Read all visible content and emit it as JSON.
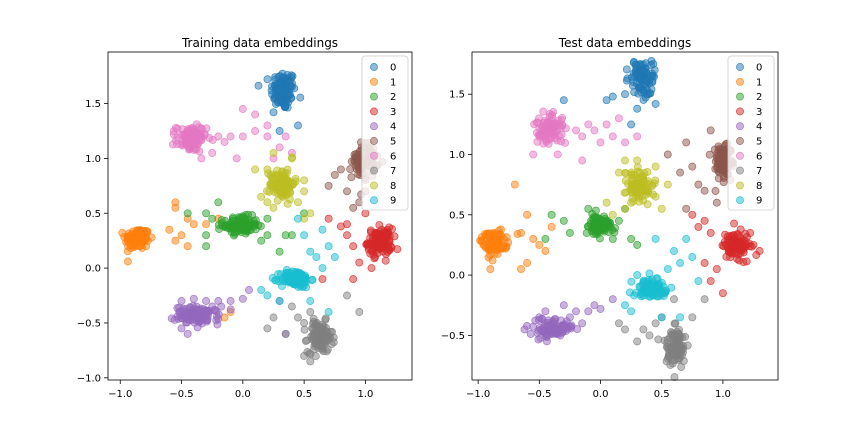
{
  "palette": [
    "#1f77b4",
    "#ff7f0e",
    "#2ca02c",
    "#d62728",
    "#9467bd",
    "#8c564b",
    "#e377c2",
    "#7f7f7f",
    "#bcbd22",
    "#17becf"
  ],
  "chart_data": [
    {
      "type": "scatter",
      "title": "Training data embeddings",
      "xlabel": "",
      "ylabel": "",
      "xlim": [
        -1.1,
        1.38
      ],
      "ylim": [
        -1.02,
        1.97
      ],
      "xticks": [
        -1.0,
        -0.5,
        0.0,
        0.5,
        1.0
      ],
      "xtick_labels": [
        "−1.0",
        "−0.5",
        "0.0",
        "0.5",
        "1.0"
      ],
      "yticks": [
        -1.0,
        -0.5,
        0.0,
        0.5,
        1.0,
        1.5
      ],
      "ytick_labels": [
        "−1.0",
        "−0.5",
        "0.0",
        "0.5",
        "1.0",
        "1.5"
      ],
      "grid": false,
      "legend": "upper right",
      "marker_alpha": 0.5,
      "series": [
        {
          "name": "0",
          "cx": 0.33,
          "cy": 1.62,
          "sx": 0.05,
          "sy": 0.09,
          "n": 110,
          "outliers": [
            [
              0.25,
              1.42
            ],
            [
              0.45,
              1.3
            ],
            [
              0.3,
              1.25
            ]
          ]
        },
        {
          "name": "1",
          "cx": -0.86,
          "cy": 0.27,
          "sx": 0.05,
          "sy": 0.05,
          "n": 110,
          "outliers": [
            [
              -0.6,
              0.35
            ],
            [
              -0.55,
              0.25
            ],
            [
              -0.5,
              0.3
            ],
            [
              -0.45,
              0.2
            ],
            [
              -0.4,
              0.4
            ],
            [
              -0.55,
              0.55
            ],
            [
              -0.45,
              0.45
            ],
            [
              -0.2,
              0.45
            ],
            [
              -0.55,
              0.6
            ],
            [
              -0.15,
              -0.45
            ],
            [
              -0.1,
              -0.4
            ],
            [
              -0.3,
              0.4
            ]
          ]
        },
        {
          "name": "2",
          "cx": -0.02,
          "cy": 0.39,
          "sx": 0.07,
          "sy": 0.04,
          "n": 110,
          "outliers": [
            [
              -0.3,
              0.5
            ],
            [
              -0.25,
              0.45
            ],
            [
              -0.3,
              0.3
            ],
            [
              -0.3,
              0.2
            ],
            [
              0.35,
              0.3
            ],
            [
              0.4,
              0.3
            ],
            [
              0.2,
              0.45
            ],
            [
              0.3,
              0.15
            ],
            [
              -0.45,
              0.5
            ],
            [
              0.5,
              0.5
            ],
            [
              -0.2,
              0.6
            ],
            [
              0.2,
              0.3
            ],
            [
              0.15,
              0.25
            ]
          ]
        },
        {
          "name": "3",
          "cx": 1.12,
          "cy": 0.24,
          "sx": 0.05,
          "sy": 0.06,
          "n": 110,
          "outliers": [
            [
              0.85,
              0.4
            ],
            [
              0.85,
              0.3
            ],
            [
              0.9,
              0.2
            ],
            [
              0.7,
              0.45
            ],
            [
              1.0,
              0.5
            ],
            [
              0.8,
              0.38
            ],
            [
              1.05,
              0.0
            ],
            [
              0.95,
              0.05
            ],
            [
              0.65,
              -0.1
            ],
            [
              0.9,
              -0.1
            ]
          ]
        },
        {
          "name": "4",
          "cx": -0.37,
          "cy": -0.43,
          "sx": 0.09,
          "sy": 0.04,
          "n": 110,
          "outliers": [
            [
              -0.2,
              -0.3
            ],
            [
              -0.1,
              -0.3
            ],
            [
              -0.25,
              -0.35
            ],
            [
              -0.3,
              -0.3
            ],
            [
              -0.4,
              -0.28
            ],
            [
              -0.5,
              -0.3
            ],
            [
              0.0,
              -0.28
            ],
            [
              0.05,
              -0.2
            ],
            [
              -0.5,
              -0.55
            ],
            [
              -0.45,
              -0.6
            ],
            [
              0.3,
              -0.3
            ],
            [
              0.35,
              -0.6
            ]
          ]
        },
        {
          "name": "5",
          "cx": 0.99,
          "cy": 0.98,
          "sx": 0.05,
          "sy": 0.08,
          "n": 80,
          "outliers": [
            [
              0.8,
              0.9
            ],
            [
              0.85,
              0.7
            ],
            [
              0.95,
              0.6
            ],
            [
              0.9,
              0.55
            ],
            [
              0.75,
              0.85
            ],
            [
              1.0,
              0.7
            ],
            [
              0.7,
              0.75
            ]
          ]
        },
        {
          "name": "6",
          "cx": -0.42,
          "cy": 1.18,
          "sx": 0.06,
          "sy": 0.06,
          "n": 100,
          "outliers": [
            [
              -0.2,
              1.2
            ],
            [
              -0.15,
              1.15
            ],
            [
              -0.1,
              1.2
            ],
            [
              0.0,
              1.2
            ],
            [
              0.1,
              1.25
            ],
            [
              0.2,
              1.2
            ],
            [
              0.3,
              1.1
            ],
            [
              0.2,
              1.3
            ],
            [
              0.35,
              1.2
            ],
            [
              -0.25,
              1.05
            ],
            [
              0.0,
              1.45
            ],
            [
              0.1,
              1.4
            ],
            [
              0.25,
              1.0
            ],
            [
              0.4,
              1.05
            ],
            [
              -0.05,
              1.0
            ]
          ]
        },
        {
          "name": "7",
          "cx": 0.63,
          "cy": -0.63,
          "sx": 0.05,
          "sy": 0.07,
          "n": 110,
          "outliers": [
            [
              0.35,
              -0.6
            ],
            [
              0.45,
              -0.45
            ],
            [
              0.5,
              -0.5
            ],
            [
              0.55,
              -0.4
            ],
            [
              0.4,
              -0.35
            ],
            [
              0.25,
              -0.45
            ],
            [
              0.2,
              -0.55
            ],
            [
              0.85,
              -0.25
            ],
            [
              0.95,
              -0.4
            ],
            [
              0.5,
              -0.8
            ],
            [
              0.55,
              -0.85
            ]
          ]
        },
        {
          "name": "8",
          "cx": 0.32,
          "cy": 0.77,
          "sx": 0.05,
          "sy": 0.07,
          "n": 100,
          "outliers": [
            [
              0.2,
              0.6
            ],
            [
              0.25,
              0.55
            ],
            [
              0.45,
              0.6
            ],
            [
              0.5,
              0.7
            ],
            [
              0.5,
              0.8
            ],
            [
              0.2,
              0.9
            ],
            [
              0.1,
              0.9
            ],
            [
              0.25,
              1.05
            ],
            [
              0.4,
              1.0
            ],
            [
              0.15,
              0.65
            ],
            [
              0.55,
              0.5
            ],
            [
              0.5,
              0.45
            ]
          ]
        },
        {
          "name": "9",
          "cx": 0.43,
          "cy": -0.1,
          "sx": 0.06,
          "sy": 0.04,
          "n": 100,
          "outliers": [
            [
              0.6,
              0.1
            ],
            [
              0.65,
              0.0
            ],
            [
              0.55,
              0.15
            ],
            [
              0.5,
              0.3
            ],
            [
              0.7,
              0.2
            ],
            [
              0.65,
              0.35
            ],
            [
              0.75,
              0.1
            ],
            [
              0.2,
              -0.25
            ],
            [
              0.15,
              -0.2
            ],
            [
              0.3,
              -0.3
            ],
            [
              0.55,
              -0.3
            ],
            [
              0.7,
              -0.4
            ],
            [
              0.45,
              0.45
            ]
          ]
        }
      ]
    },
    {
      "type": "scatter",
      "title": "Test data embeddings",
      "xlabel": "",
      "ylabel": "",
      "xlim": [
        -1.05,
        1.45
      ],
      "ylim": [
        -0.87,
        1.85
      ],
      "xticks": [
        -1.0,
        -0.5,
        0.0,
        0.5,
        1.0
      ],
      "xtick_labels": [
        "−1.0",
        "−0.5",
        "0.0",
        "0.5",
        "1.0"
      ],
      "yticks": [
        -0.5,
        0.0,
        0.5,
        1.0,
        1.5
      ],
      "ytick_labels": [
        "−0.5",
        "0.0",
        "0.5",
        "1.0",
        "1.5"
      ],
      "grid": false,
      "legend": "upper right",
      "marker_alpha": 0.5,
      "series": [
        {
          "name": "0",
          "cx": 0.34,
          "cy": 1.64,
          "sx": 0.05,
          "sy": 0.08,
          "n": 90,
          "outliers": [
            [
              0.2,
              1.5
            ],
            [
              0.1,
              1.48
            ],
            [
              0.3,
              1.38
            ],
            [
              0.45,
              1.42
            ],
            [
              0.05,
              1.45
            ],
            [
              0.25,
              1.25
            ],
            [
              -0.3,
              1.45
            ]
          ]
        },
        {
          "name": "1",
          "cx": -0.88,
          "cy": 0.27,
          "sx": 0.05,
          "sy": 0.05,
          "n": 90,
          "outliers": [
            [
              -0.6,
              0.5
            ],
            [
              -0.65,
              0.35
            ],
            [
              -0.55,
              0.3
            ],
            [
              -0.5,
              0.25
            ],
            [
              -0.65,
              0.05
            ],
            [
              -0.7,
              0.75
            ],
            [
              -0.4,
              0.4
            ],
            [
              -0.45,
              0.2
            ],
            [
              -0.6,
              0.1
            ],
            [
              -0.9,
              0.05
            ]
          ]
        },
        {
          "name": "2",
          "cx": 0.0,
          "cy": 0.41,
          "sx": 0.05,
          "sy": 0.04,
          "n": 90,
          "outliers": [
            [
              -0.3,
              0.45
            ],
            [
              -0.25,
              0.35
            ],
            [
              0.25,
              0.3
            ],
            [
              0.15,
              0.45
            ],
            [
              0.2,
              0.55
            ],
            [
              -0.4,
              0.5
            ],
            [
              0.3,
              0.25
            ],
            [
              -0.1,
              0.55
            ],
            [
              0.1,
              0.3
            ],
            [
              -0.45,
              0.3
            ]
          ]
        },
        {
          "name": "3",
          "cx": 1.1,
          "cy": 0.24,
          "sx": 0.06,
          "sy": 0.06,
          "n": 90,
          "outliers": [
            [
              0.8,
              0.4
            ],
            [
              0.85,
              0.45
            ],
            [
              0.9,
              0.35
            ],
            [
              0.85,
              0.1
            ],
            [
              0.95,
              0.05
            ],
            [
              1.0,
              -0.15
            ],
            [
              0.9,
              -0.05
            ],
            [
              0.75,
              0.5
            ],
            [
              1.25,
              0.25
            ],
            [
              1.3,
              0.2
            ]
          ]
        },
        {
          "name": "4",
          "cx": -0.4,
          "cy": -0.44,
          "sx": 0.09,
          "sy": 0.04,
          "n": 90,
          "outliers": [
            [
              -0.2,
              -0.3
            ],
            [
              -0.25,
              -0.35
            ],
            [
              -0.1,
              -0.3
            ],
            [
              0.0,
              -0.28
            ],
            [
              -0.05,
              -0.25
            ],
            [
              -0.3,
              -0.25
            ],
            [
              -0.45,
              -0.3
            ],
            [
              -0.5,
              -0.35
            ],
            [
              0.1,
              -0.2
            ],
            [
              -0.15,
              -0.4
            ]
          ]
        },
        {
          "name": "5",
          "cx": 1.0,
          "cy": 0.95,
          "sx": 0.05,
          "sy": 0.09,
          "n": 80,
          "outliers": [
            [
              0.75,
              0.9
            ],
            [
              0.8,
              0.75
            ],
            [
              0.85,
              0.7
            ],
            [
              0.7,
              1.1
            ],
            [
              0.9,
              1.2
            ],
            [
              0.65,
              0.85
            ],
            [
              0.7,
              0.55
            ],
            [
              0.55,
              1.0
            ],
            [
              0.95,
              0.6
            ]
          ]
        },
        {
          "name": "6",
          "cx": -0.42,
          "cy": 1.21,
          "sx": 0.06,
          "sy": 0.06,
          "n": 90,
          "outliers": [
            [
              -0.2,
              1.2
            ],
            [
              -0.1,
              1.25
            ],
            [
              -0.05,
              1.2
            ],
            [
              0.05,
              1.25
            ],
            [
              0.15,
              1.3
            ],
            [
              -0.15,
              1.15
            ],
            [
              0.0,
              1.1
            ],
            [
              -0.55,
              1.0
            ],
            [
              -0.35,
              1.0
            ],
            [
              0.1,
              1.15
            ],
            [
              0.3,
              1.15
            ],
            [
              -0.15,
              0.95
            ],
            [
              0.2,
              1.1
            ]
          ]
        },
        {
          "name": "7",
          "cx": 0.61,
          "cy": -0.6,
          "sx": 0.05,
          "sy": 0.08,
          "n": 100,
          "outliers": [
            [
              0.35,
              -0.45
            ],
            [
              0.4,
              -0.5
            ],
            [
              0.45,
              -0.4
            ],
            [
              0.3,
              -0.55
            ],
            [
              0.5,
              -0.35
            ],
            [
              0.85,
              -0.2
            ],
            [
              0.2,
              -0.45
            ],
            [
              0.15,
              -0.4
            ],
            [
              0.75,
              -0.35
            ],
            [
              0.6,
              -0.2
            ]
          ]
        },
        {
          "name": "8",
          "cx": 0.31,
          "cy": 0.74,
          "sx": 0.05,
          "sy": 0.07,
          "n": 90,
          "outliers": [
            [
              0.2,
              0.55
            ],
            [
              0.25,
              0.6
            ],
            [
              0.45,
              0.65
            ],
            [
              0.5,
              0.55
            ],
            [
              0.15,
              0.85
            ],
            [
              0.3,
              0.95
            ],
            [
              0.2,
              0.95
            ],
            [
              0.55,
              0.75
            ],
            [
              0.1,
              0.5
            ],
            [
              0.05,
              0.6
            ],
            [
              0.45,
              0.9
            ]
          ]
        },
        {
          "name": "9",
          "cx": 0.42,
          "cy": -0.11,
          "sx": 0.06,
          "sy": 0.04,
          "n": 100,
          "outliers": [
            [
              0.6,
              0.2
            ],
            [
              0.65,
              0.1
            ],
            [
              0.7,
              0.3
            ],
            [
              0.75,
              0.15
            ],
            [
              0.55,
              0.05
            ],
            [
              0.2,
              -0.25
            ],
            [
              0.25,
              -0.3
            ],
            [
              0.65,
              -0.35
            ],
            [
              0.5,
              -0.35
            ],
            [
              0.3,
              0.0
            ],
            [
              0.45,
              0.3
            ],
            [
              0.8,
              -0.05
            ]
          ]
        }
      ]
    }
  ]
}
